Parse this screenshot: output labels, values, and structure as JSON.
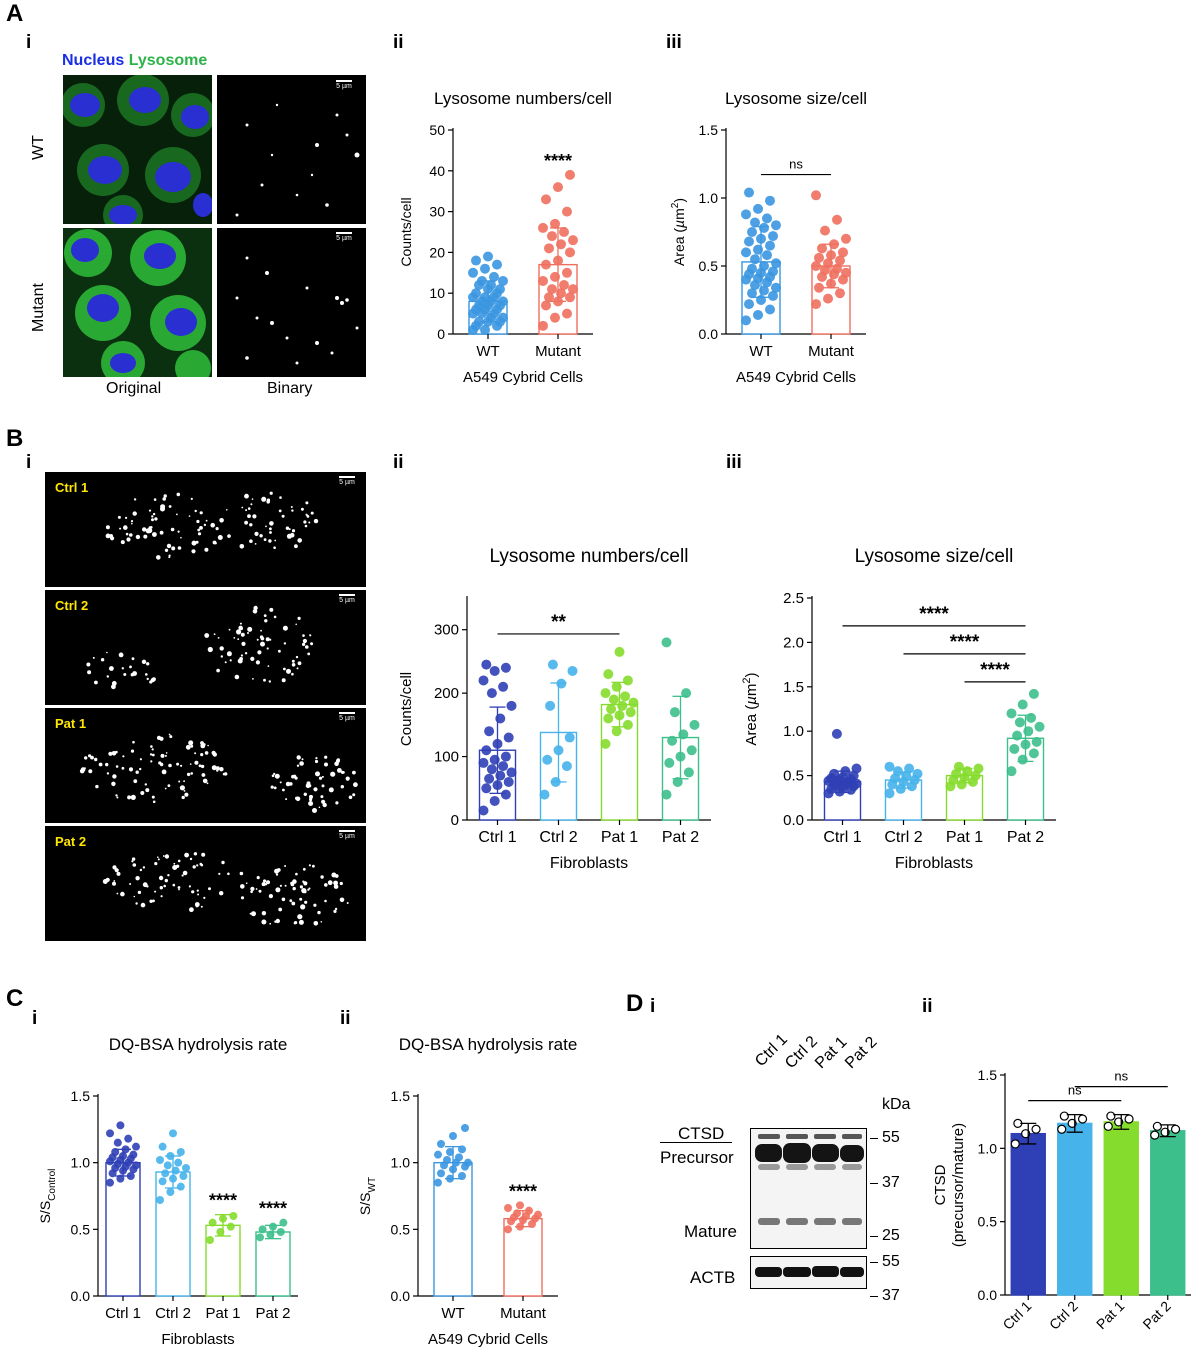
{
  "panel_A": {
    "letter": "A",
    "sub_i": "i",
    "sub_ii": "ii",
    "sub_iii": "iii",
    "stain_nucleus": "Nucleus",
    "stain_lysosome": "Lysosome",
    "row_labels": [
      "WT",
      "Mutant"
    ],
    "col_labels": [
      "Original",
      "Binary"
    ],
    "scale_label": "5 µm"
  },
  "panel_B": {
    "letter": "B",
    "sub_i": "i",
    "sub_ii": "ii",
    "sub_iii": "iii",
    "cell_labels": [
      "Ctrl 1",
      "Ctrl 2",
      "Pat 1",
      "Pat 2"
    ],
    "scale_label": "5 µm"
  },
  "panel_C": {
    "letter": "C",
    "sub_i": "i",
    "sub_ii": "ii"
  },
  "panel_D": {
    "letter": "D",
    "sub_i": "i",
    "sub_ii": "ii",
    "lanes": [
      "Ctrl 1",
      "Ctrl 2",
      "Pat 1",
      "Pat 2"
    ],
    "kda_label": "kDa",
    "markers": [
      "55",
      "37",
      "25",
      "55",
      "37"
    ],
    "protein_ctsd": "CTSD",
    "band_precursor": "Precursor",
    "band_mature": "Mature",
    "protein_actb": "ACTB"
  },
  "colors": {
    "wt": "#3a96e0",
    "mutant": "#ef6f5e",
    "ctrl1": "#2f3fb5",
    "ctrl2": "#46b3ea",
    "pat1": "#86dc2c",
    "pat2": "#3dbf8c",
    "nucleus_text": "#1a2ee6",
    "lysosome_text": "#2db34a"
  },
  "chart_data": [
    {
      "id": "A-ii",
      "type": "bar",
      "title": "Lysosome numbers/cell",
      "ylabel": "Counts/cell",
      "xlabel": "A549 Cybrid Cells",
      "categories": [
        "WT",
        "Mutant"
      ],
      "values": [
        8,
        17
      ],
      "sd": [
        5,
        9
      ],
      "ylim": [
        0,
        50
      ],
      "yticks": [
        0,
        10,
        20,
        30,
        40,
        50
      ],
      "points": [
        [
          1,
          1,
          2,
          2,
          3,
          3,
          3,
          4,
          4,
          5,
          5,
          5,
          6,
          6,
          6,
          7,
          7,
          7,
          8,
          8,
          8,
          9,
          9,
          9,
          10,
          10,
          11,
          11,
          12,
          12,
          13,
          13,
          14,
          15,
          16,
          17,
          18,
          19
        ],
        [
          2,
          4,
          5,
          7,
          8,
          9,
          9,
          10,
          11,
          11,
          12,
          13,
          14,
          15,
          17,
          18,
          20,
          21,
          22,
          23,
          24,
          25,
          26,
          27,
          30,
          33,
          36,
          39
        ]
      ],
      "annotations": [
        {
          "category": "Mutant",
          "text": "****"
        }
      ],
      "comparisons": []
    },
    {
      "id": "A-iii",
      "type": "bar",
      "title": "Lysosome size/cell",
      "ylabel": "Area (µm²)",
      "xlabel": "A549 Cybrid Cells",
      "categories": [
        "WT",
        "Mutant"
      ],
      "values": [
        0.53,
        0.5
      ],
      "sd": [
        0.26,
        0.16
      ],
      "ylim": [
        0,
        1.5
      ],
      "yticks": [
        0.0,
        0.5,
        1.0,
        1.5
      ],
      "points": [
        [
          0.1,
          0.14,
          0.18,
          0.22,
          0.25,
          0.28,
          0.3,
          0.32,
          0.34,
          0.36,
          0.38,
          0.4,
          0.41,
          0.42,
          0.44,
          0.45,
          0.46,
          0.48,
          0.5,
          0.52,
          0.55,
          0.58,
          0.6,
          0.62,
          0.65,
          0.68,
          0.7,
          0.72,
          0.75,
          0.78,
          0.8,
          0.82,
          0.85,
          0.88,
          0.92,
          0.98,
          1.04
        ],
        [
          0.22,
          0.26,
          0.3,
          0.34,
          0.37,
          0.4,
          0.42,
          0.44,
          0.45,
          0.47,
          0.48,
          0.5,
          0.52,
          0.54,
          0.56,
          0.58,
          0.6,
          0.63,
          0.66,
          0.7,
          0.76,
          0.84,
          1.02
        ]
      ],
      "annotations": [],
      "comparisons": [
        {
          "from": "WT",
          "to": "Mutant",
          "text": "ns"
        }
      ]
    },
    {
      "id": "B-ii",
      "type": "bar",
      "title": "Lysosome numbers/cell",
      "ylabel": "Counts/cell",
      "xlabel": "Fibroblasts",
      "categories": [
        "Ctrl 1",
        "Ctrl 2",
        "Pat 1",
        "Pat 2"
      ],
      "values": [
        110,
        138,
        182,
        130
      ],
      "sd": [
        68,
        78,
        35,
        65
      ],
      "ylim": [
        0,
        350
      ],
      "yticks": [
        0,
        100,
        200,
        300
      ],
      "points": [
        [
          15,
          30,
          40,
          50,
          55,
          60,
          65,
          70,
          75,
          80,
          85,
          90,
          95,
          100,
          110,
          120,
          130,
          140,
          160,
          180,
          200,
          210,
          220,
          235,
          240,
          245
        ],
        [
          40,
          60,
          85,
          95,
          110,
          130,
          180,
          215,
          235,
          245
        ],
        [
          120,
          140,
          150,
          160,
          165,
          170,
          175,
          180,
          185,
          190,
          195,
          200,
          210,
          220,
          230,
          265
        ],
        [
          40,
          60,
          75,
          90,
          100,
          110,
          125,
          135,
          150,
          170,
          200,
          280
        ]
      ],
      "annotations": [],
      "comparisons": [
        {
          "from": "Ctrl 1",
          "to": "Pat 1",
          "text": "**"
        }
      ]
    },
    {
      "id": "B-iii",
      "type": "bar",
      "title": "Lysosome size/cell",
      "ylabel": "Area (µm²)",
      "xlabel": "Fibroblasts",
      "categories": [
        "Ctrl 1",
        "Ctrl 2",
        "Pat 1",
        "Pat 2"
      ],
      "values": [
        0.43,
        0.45,
        0.5,
        0.92
      ],
      "sd": [
        0.12,
        0.09,
        0.08,
        0.26
      ],
      "ylim": [
        0,
        2.5
      ],
      "yticks": [
        0.0,
        0.5,
        1.0,
        1.5,
        2.0,
        2.5
      ],
      "points": [
        [
          0.3,
          0.32,
          0.34,
          0.35,
          0.36,
          0.38,
          0.39,
          0.4,
          0.41,
          0.42,
          0.43,
          0.44,
          0.45,
          0.46,
          0.47,
          0.48,
          0.5,
          0.52,
          0.55,
          0.58,
          0.97
        ],
        [
          0.3,
          0.35,
          0.38,
          0.4,
          0.43,
          0.45,
          0.47,
          0.5,
          0.52,
          0.55,
          0.58,
          0.6
        ],
        [
          0.38,
          0.4,
          0.43,
          0.45,
          0.48,
          0.5,
          0.52,
          0.55,
          0.58,
          0.6
        ],
        [
          0.55,
          0.68,
          0.75,
          0.8,
          0.85,
          0.88,
          0.95,
          1.0,
          1.05,
          1.1,
          1.15,
          1.2,
          1.3,
          1.42
        ]
      ],
      "annotations": [],
      "comparisons": [
        {
          "from": "Ctrl 1",
          "to": "Pat 2",
          "text": "****"
        },
        {
          "from": "Ctrl 2",
          "to": "Pat 2",
          "text": "****"
        },
        {
          "from": "Pat 1",
          "to": "Pat 2",
          "text": "****"
        }
      ]
    },
    {
      "id": "C-i",
      "type": "bar",
      "title": "DQ-BSA hydrolysis rate",
      "ylabel": "S/S_Control",
      "xlabel": "Fibroblasts",
      "categories": [
        "Ctrl 1",
        "Ctrl 2",
        "Pat 1",
        "Pat 2"
      ],
      "values": [
        1.0,
        0.93,
        0.53,
        0.48
      ],
      "sd": [
        0.1,
        0.12,
        0.08,
        0.05
      ],
      "ylim": [
        0,
        1.5
      ],
      "yticks": [
        0.0,
        0.5,
        1.0,
        1.5
      ],
      "points": [
        [
          0.85,
          0.88,
          0.9,
          0.92,
          0.94,
          0.95,
          0.96,
          0.97,
          0.98,
          0.99,
          1.0,
          1.01,
          1.02,
          1.03,
          1.04,
          1.05,
          1.06,
          1.08,
          1.1,
          1.12,
          1.15,
          1.18,
          1.22,
          1.28
        ],
        [
          0.72,
          0.78,
          0.82,
          0.86,
          0.88,
          0.9,
          0.92,
          0.94,
          0.96,
          0.98,
          1.0,
          1.02,
          1.05,
          1.08,
          1.12,
          1.22
        ],
        [
          0.42,
          0.48,
          0.52,
          0.55,
          0.58,
          0.6
        ],
        [
          0.44,
          0.46,
          0.48,
          0.5,
          0.52,
          0.55
        ]
      ],
      "annotations": [
        {
          "category": "Pat 1",
          "text": "****"
        },
        {
          "category": "Pat 2",
          "text": "****"
        }
      ],
      "comparisons": []
    },
    {
      "id": "C-ii",
      "type": "bar",
      "title": "DQ-BSA hydrolysis rate",
      "ylabel": "S/S_WT",
      "xlabel": "A549 Cybrid Cells",
      "categories": [
        "WT",
        "Mutant"
      ],
      "values": [
        1.0,
        0.58
      ],
      "sd": [
        0.12,
        0.06
      ],
      "ylim": [
        0,
        1.5
      ],
      "yticks": [
        0.0,
        0.5,
        1.0,
        1.5
      ],
      "points": [
        [
          0.85,
          0.88,
          0.9,
          0.92,
          0.95,
          0.97,
          0.98,
          1.0,
          1.0,
          1.02,
          1.04,
          1.06,
          1.08,
          1.1,
          1.14,
          1.2,
          1.26
        ],
        [
          0.5,
          0.52,
          0.54,
          0.56,
          0.57,
          0.58,
          0.59,
          0.6,
          0.61,
          0.62,
          0.64,
          0.66,
          0.68
        ]
      ],
      "annotations": [
        {
          "category": "Mutant",
          "text": "****"
        }
      ],
      "comparisons": []
    },
    {
      "id": "D-ii",
      "type": "bar",
      "title": "",
      "ylabel": "CTSD (precursor/mature)",
      "xlabel": "",
      "categories": [
        "Ctrl 1",
        "Ctrl 2",
        "Pat 1",
        "Pat 2"
      ],
      "values": [
        1.1,
        1.17,
        1.18,
        1.12
      ],
      "sd": [
        0.07,
        0.06,
        0.05,
        0.04
      ],
      "ylim": [
        0,
        1.5
      ],
      "yticks": [
        0.0,
        0.5,
        1.0,
        1.5
      ],
      "points": [
        [
          1.03,
          1.1,
          1.13,
          1.17
        ],
        [
          1.13,
          1.17,
          1.2,
          1.22
        ],
        [
          1.15,
          1.18,
          1.2,
          1.22
        ],
        [
          1.09,
          1.11,
          1.13,
          1.15
        ]
      ],
      "annotations": [],
      "comparisons": [
        {
          "from": "Ctrl 1",
          "to": "Pat 1",
          "text": "ns"
        },
        {
          "from": "Ctrl 2",
          "to": "Pat 2",
          "text": "ns"
        }
      ]
    }
  ]
}
